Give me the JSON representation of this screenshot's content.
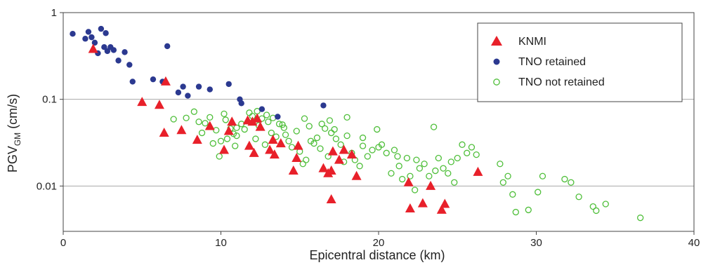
{
  "chart_data": {
    "type": "scatter",
    "title": "",
    "xlabel": "Epicentral distance (km)",
    "ylabel_main": "PGV",
    "ylabel_sub": "GM",
    "ylabel_unit": " (cm/s)",
    "xlim": [
      0,
      40
    ],
    "ylim": [
      0.003,
      1
    ],
    "yscale": "log",
    "grid": "horizontal major lines",
    "legend_position": "top-right",
    "x_ticks": [
      {
        "value": 0,
        "label": "0"
      },
      {
        "value": 10,
        "label": "10"
      },
      {
        "value": 20,
        "label": "20"
      },
      {
        "value": 30,
        "label": "30"
      },
      {
        "value": 40,
        "label": "40"
      }
    ],
    "y_ticks": [
      {
        "value": 1,
        "label": "1"
      },
      {
        "value": 0.1,
        "label": "0.1"
      },
      {
        "value": 0.01,
        "label": "0.01"
      }
    ],
    "series": [
      {
        "name": "KNMI",
        "marker": "triangle",
        "color": "#e8202a",
        "points": [
          [
            1.9,
            0.38
          ],
          [
            6.5,
            0.16
          ],
          [
            5.0,
            0.093
          ],
          [
            6.1,
            0.086
          ],
          [
            6.4,
            0.041
          ],
          [
            7.5,
            0.044
          ],
          [
            8.5,
            0.034
          ],
          [
            9.3,
            0.049
          ],
          [
            10.2,
            0.026
          ],
          [
            10.5,
            0.043
          ],
          [
            10.7,
            0.055
          ],
          [
            11.7,
            0.057
          ],
          [
            12.0,
            0.055
          ],
          [
            12.3,
            0.06
          ],
          [
            12.5,
            0.048
          ],
          [
            11.8,
            0.029
          ],
          [
            12.1,
            0.024
          ],
          [
            13.1,
            0.026
          ],
          [
            13.3,
            0.034
          ],
          [
            13.4,
            0.023
          ],
          [
            13.8,
            0.031
          ],
          [
            14.6,
            0.015
          ],
          [
            14.8,
            0.021
          ],
          [
            14.9,
            0.029
          ],
          [
            16.5,
            0.016
          ],
          [
            16.8,
            0.014
          ],
          [
            17.0,
            0.015
          ],
          [
            17.1,
            0.025
          ],
          [
            17.0,
            0.007
          ],
          [
            17.5,
            0.02
          ],
          [
            17.8,
            0.026
          ],
          [
            18.3,
            0.023
          ],
          [
            18.6,
            0.013
          ],
          [
            21.9,
            0.011
          ],
          [
            22.0,
            0.0055
          ],
          [
            22.8,
            0.0063
          ],
          [
            23.3,
            0.01
          ],
          [
            24.0,
            0.0053
          ],
          [
            24.2,
            0.0062
          ],
          [
            26.3,
            0.0145
          ]
        ]
      },
      {
        "name": "TNO retained",
        "marker": "filled-circle",
        "color": "#2b3990",
        "points": [
          [
            0.6,
            0.57
          ],
          [
            1.4,
            0.5
          ],
          [
            1.6,
            0.6
          ],
          [
            1.8,
            0.52
          ],
          [
            2.0,
            0.45
          ],
          [
            2.2,
            0.34
          ],
          [
            2.4,
            0.65
          ],
          [
            2.6,
            0.4
          ],
          [
            2.7,
            0.58
          ],
          [
            2.8,
            0.36
          ],
          [
            3.0,
            0.4
          ],
          [
            3.2,
            0.37
          ],
          [
            3.5,
            0.28
          ],
          [
            3.9,
            0.35
          ],
          [
            4.2,
            0.25
          ],
          [
            4.4,
            0.16
          ],
          [
            5.7,
            0.17
          ],
          [
            6.3,
            0.16
          ],
          [
            6.6,
            0.41
          ],
          [
            7.3,
            0.12
          ],
          [
            7.6,
            0.14
          ],
          [
            7.9,
            0.11
          ],
          [
            8.6,
            0.14
          ],
          [
            9.3,
            0.13
          ],
          [
            10.5,
            0.15
          ],
          [
            11.2,
            0.1
          ],
          [
            11.3,
            0.09
          ],
          [
            12.6,
            0.077
          ],
          [
            13.6,
            0.063
          ],
          [
            16.5,
            0.085
          ]
        ]
      },
      {
        "name": "TNO not retained",
        "marker": "open-circle",
        "color": "#4fbf3a",
        "points": [
          [
            7.0,
            0.059
          ],
          [
            7.8,
            0.061
          ],
          [
            8.3,
            0.072
          ],
          [
            8.6,
            0.055
          ],
          [
            8.8,
            0.041
          ],
          [
            9.0,
            0.053
          ],
          [
            9.3,
            0.062
          ],
          [
            9.5,
            0.031
          ],
          [
            9.7,
            0.044
          ],
          [
            10.0,
            0.033
          ],
          [
            10.2,
            0.068
          ],
          [
            10.4,
            0.035
          ],
          [
            10.6,
            0.046
          ],
          [
            10.8,
            0.04
          ],
          [
            11.0,
            0.038
          ],
          [
            11.3,
            0.052
          ],
          [
            11.5,
            0.045
          ],
          [
            11.8,
            0.07
          ],
          [
            12.0,
            0.064
          ],
          [
            12.2,
            0.035
          ],
          [
            12.4,
            0.05
          ],
          [
            12.6,
            0.06
          ],
          [
            12.8,
            0.03
          ],
          [
            13.0,
            0.055
          ],
          [
            13.2,
            0.041
          ],
          [
            13.5,
            0.037
          ],
          [
            13.7,
            0.052
          ],
          [
            14.0,
            0.047
          ],
          [
            14.3,
            0.033
          ],
          [
            14.5,
            0.028
          ],
          [
            14.8,
            0.043
          ],
          [
            15.0,
            0.025
          ],
          [
            15.2,
            0.018
          ],
          [
            15.4,
            0.02
          ],
          [
            15.6,
            0.049
          ],
          [
            15.9,
            0.031
          ],
          [
            16.1,
            0.036
          ],
          [
            16.3,
            0.027
          ],
          [
            16.6,
            0.046
          ],
          [
            16.8,
            0.022
          ],
          [
            17.0,
            0.041
          ],
          [
            17.3,
            0.035
          ],
          [
            17.6,
            0.03
          ],
          [
            17.8,
            0.019
          ],
          [
            18.0,
            0.038
          ],
          [
            18.3,
            0.024
          ],
          [
            18.5,
            0.02
          ],
          [
            18.8,
            0.017
          ],
          [
            19.0,
            0.029
          ],
          [
            19.3,
            0.022
          ],
          [
            19.6,
            0.026
          ],
          [
            19.9,
            0.045
          ],
          [
            20.2,
            0.03
          ],
          [
            20.5,
            0.024
          ],
          [
            20.8,
            0.014
          ],
          [
            21.0,
            0.026
          ],
          [
            21.3,
            0.017
          ],
          [
            21.5,
            0.012
          ],
          [
            21.8,
            0.021
          ],
          [
            22.0,
            0.013
          ],
          [
            22.3,
            0.009
          ],
          [
            22.6,
            0.016
          ],
          [
            22.9,
            0.018
          ],
          [
            23.2,
            0.013
          ],
          [
            23.5,
            0.048
          ],
          [
            23.8,
            0.021
          ],
          [
            24.1,
            0.016
          ],
          [
            24.4,
            0.014
          ],
          [
            24.8,
            0.011
          ],
          [
            25.0,
            0.021
          ],
          [
            25.3,
            0.03
          ],
          [
            25.6,
            0.024
          ],
          [
            25.9,
            0.028
          ],
          [
            26.2,
            0.023
          ],
          [
            27.7,
            0.018
          ],
          [
            27.9,
            0.011
          ],
          [
            28.2,
            0.013
          ],
          [
            28.5,
            0.008
          ],
          [
            28.7,
            0.005
          ],
          [
            29.5,
            0.0053
          ],
          [
            30.1,
            0.0085
          ],
          [
            30.4,
            0.013
          ],
          [
            31.8,
            0.012
          ],
          [
            32.2,
            0.011
          ],
          [
            32.7,
            0.0075
          ],
          [
            33.6,
            0.0058
          ],
          [
            33.8,
            0.0052
          ],
          [
            34.4,
            0.0062
          ],
          [
            36.6,
            0.0043
          ],
          [
            10.3,
            0.058
          ],
          [
            11.0,
            0.047
          ],
          [
            12.3,
            0.073
          ],
          [
            12.9,
            0.066
          ],
          [
            13.3,
            0.061
          ],
          [
            14.1,
            0.039
          ],
          [
            15.3,
            0.06
          ],
          [
            16.4,
            0.052
          ],
          [
            17.2,
            0.045
          ],
          [
            18.0,
            0.062
          ],
          [
            19.0,
            0.036
          ],
          [
            20.0,
            0.028
          ],
          [
            21.2,
            0.022
          ],
          [
            22.4,
            0.02
          ],
          [
            23.6,
            0.015
          ],
          [
            24.6,
            0.019
          ],
          [
            9.9,
            0.022
          ],
          [
            10.9,
            0.029
          ],
          [
            13.9,
            0.051
          ],
          [
            15.7,
            0.033
          ],
          [
            16.9,
            0.057
          ]
        ]
      }
    ]
  }
}
